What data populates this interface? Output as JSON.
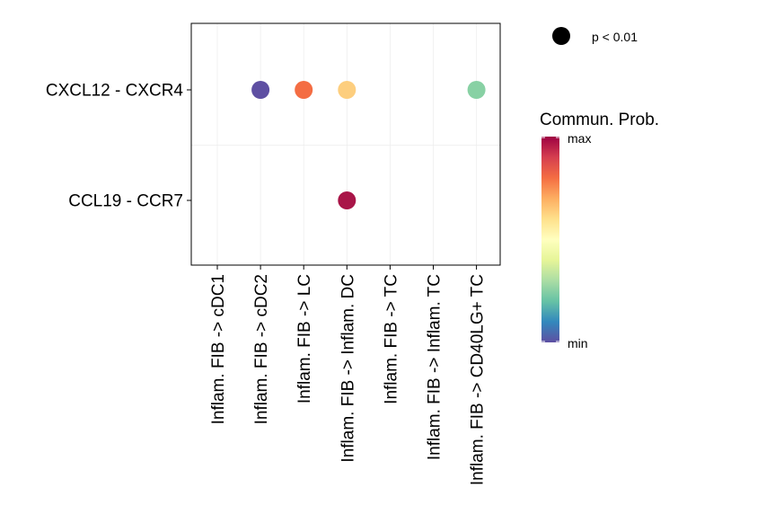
{
  "chart_data": {
    "type": "scatter",
    "subtype": "dot-plot",
    "title": "",
    "xlabel": "",
    "ylabel": "",
    "x_categories": [
      "Inflam. FIB -> cDC1",
      "Inflam. FIB -> cDC2",
      "Inflam. FIB -> LC",
      "Inflam. FIB -> Inflam. DC",
      "Inflam. FIB -> TC",
      "Inflam. FIB -> Inflam. TC",
      "Inflam. FIB -> CD40LG+ TC"
    ],
    "y_categories": [
      "CXCL12 - CXCR4",
      "CCL19 - CCR7"
    ],
    "points": [
      {
        "x": "Inflam. FIB -> cDC2",
        "y": "CXCL12 - CXCR4",
        "prob": 0.02,
        "color": "#5E4FA2"
      },
      {
        "x": "Inflam. FIB -> LC",
        "y": "CXCL12 - CXCR4",
        "prob": 0.78,
        "color": "#F46D43"
      },
      {
        "x": "Inflam. FIB -> Inflam. DC",
        "y": "CXCL12 - CXCR4",
        "prob": 0.62,
        "color": "#FDCE7E"
      },
      {
        "x": "Inflam. FIB -> CD40LG+ TC",
        "y": "CXCL12 - CXCR4",
        "prob": 0.3,
        "color": "#88D1A4"
      },
      {
        "x": "Inflam. FIB -> Inflam. DC",
        "y": "CCL19 - CCR7",
        "prob": 0.98,
        "color": "#A91548"
      }
    ],
    "size_legend": {
      "label": "p < 0.01"
    },
    "color_legend": {
      "title": "Commun. Prob.",
      "max_label": "max",
      "min_label": "min",
      "palette": [
        "#9E0142",
        "#D53E4F",
        "#F46D43",
        "#FDAE61",
        "#FEE08B",
        "#FFFFBF",
        "#E6F598",
        "#ABDDA4",
        "#66C2A5",
        "#3288BD",
        "#5E4FA2"
      ]
    },
    "grid": true
  }
}
